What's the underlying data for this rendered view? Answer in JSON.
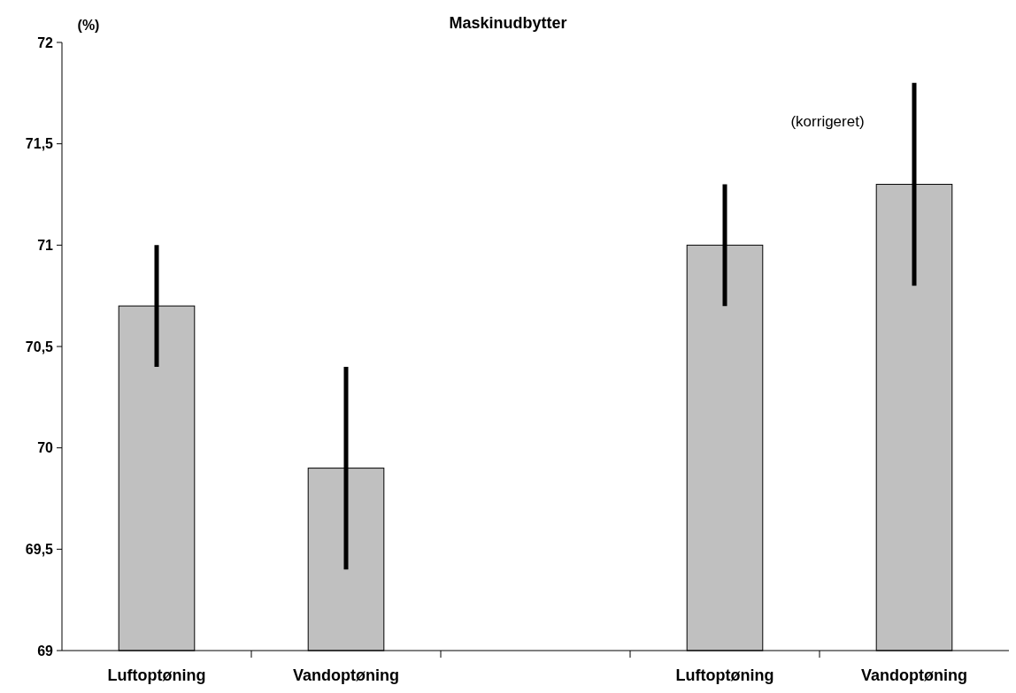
{
  "chart_data": {
    "type": "bar",
    "title": "Maskinudbytter",
    "ylabel": "(%)",
    "categories": [
      "Luftoptøning",
      "Vandoptøning",
      null,
      "Luftoptøning",
      "Vandoptøning"
    ],
    "values": [
      70.7,
      69.9,
      null,
      71.0,
      71.3
    ],
    "errors": [
      0.3,
      0.5,
      null,
      0.3,
      0.5
    ],
    "color": "#c0c0c0",
    "ylim": [
      69,
      72
    ],
    "yticks": [
      69,
      {
        "value": 69.5,
        "label": "69,5"
      },
      70,
      {
        "value": 70.5,
        "label": "70,5"
      },
      71,
      {
        "value": 71.5,
        "label": "71,5"
      },
      72
    ],
    "annotations": [
      "(korrigeret)"
    ],
    "grid": false
  }
}
